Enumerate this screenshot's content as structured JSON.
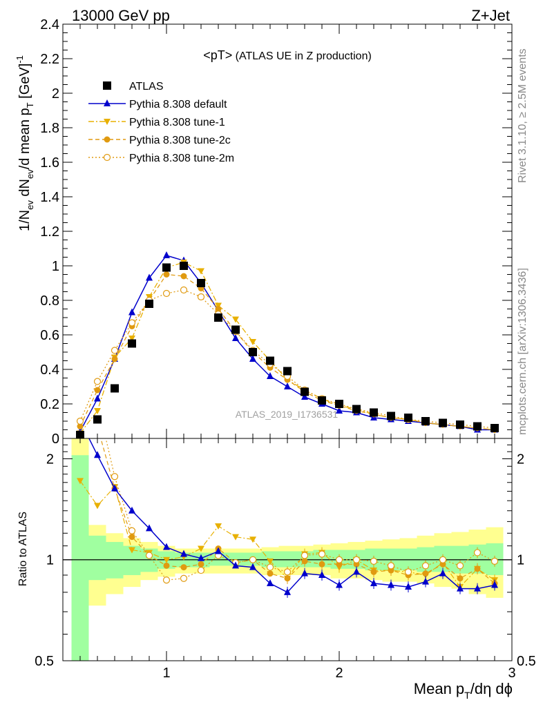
{
  "header": {
    "left": "13000 GeV pp",
    "right": "Z+Jet"
  },
  "side": {
    "top": "Rivet 3.1.10, ≥ 2.5M events",
    "bottom": "mcplots.cern.ch [arXiv:1306.3436]"
  },
  "chart_data": {
    "type": "line",
    "title": "<pT> (ATLAS UE in Z production)",
    "watermark": "ATLAS_2019_I1736531",
    "xlabel_main": "Mean p",
    "xlabel_sub": "T",
    "xlabel_rest": "/dη dϕ",
    "ylabel": "1/N_ev dN_ev/d mean p_T [GeV]^-1",
    "ratio_ylabel": "Ratio to ATLAS",
    "xlim": [
      0.4,
      3.0
    ],
    "ylim": [
      0,
      2.4
    ],
    "ratio_ylim": [
      0.5,
      2.3
    ],
    "x_ticks": [
      1,
      2,
      3
    ],
    "y_ticks": [
      0,
      0.2,
      0.4,
      0.6,
      0.8,
      1,
      1.2,
      1.4,
      1.6,
      1.8,
      2,
      2.2,
      2.4
    ],
    "y_tick_labels": [
      "0",
      "0.2",
      "0.4",
      "0.6",
      "0.8",
      "1",
      "1.2",
      "1.4",
      "1.6",
      "1.8",
      "2",
      "2.2",
      "2.4"
    ],
    "ratio_ticks": [
      0.5,
      1,
      2
    ],
    "ratio_tick_labels": [
      "0.5",
      "1",
      "2"
    ],
    "x": [
      0.5,
      0.6,
      0.7,
      0.8,
      0.9,
      1.0,
      1.1,
      1.2,
      1.3,
      1.4,
      1.5,
      1.6,
      1.7,
      1.8,
      1.9,
      2.0,
      2.1,
      2.2,
      2.3,
      2.4,
      2.5,
      2.6,
      2.7,
      2.8,
      2.9
    ],
    "series": [
      {
        "name": "ATLAS",
        "color": "#000000",
        "marker": "square",
        "values": [
          0.02,
          0.11,
          0.29,
          0.55,
          0.78,
          0.99,
          1.0,
          0.9,
          0.7,
          0.63,
          0.5,
          0.45,
          0.39,
          0.27,
          0.22,
          0.2,
          0.17,
          0.15,
          0.13,
          0.12,
          0.1,
          0.09,
          0.08,
          0.07,
          0.06
        ]
      },
      {
        "name": "Pythia 8.308 default",
        "color": "#0000cc",
        "marker": "triangle-up",
        "line": "solid",
        "values": [
          0.04,
          0.23,
          0.46,
          0.73,
          0.93,
          1.06,
          1.03,
          0.9,
          0.74,
          0.58,
          0.46,
          0.36,
          0.3,
          0.24,
          0.2,
          0.16,
          0.15,
          0.12,
          0.11,
          0.1,
          0.09,
          0.08,
          0.07,
          0.05,
          0.05
        ]
      },
      {
        "name": "Pythia 8.308 tune-1",
        "color": "#e8b000",
        "marker": "triangle-down",
        "line": "dashdot",
        "values": [
          0.03,
          0.16,
          0.47,
          0.58,
          0.82,
          0.99,
          1.02,
          0.97,
          0.77,
          0.69,
          0.56,
          0.45,
          0.34,
          0.28,
          0.23,
          0.19,
          0.17,
          0.14,
          0.12,
          0.11,
          0.09,
          0.08,
          0.07,
          0.06,
          0.05
        ]
      },
      {
        "name": "Pythia 8.308 tune-2c",
        "color": "#e09a10",
        "marker": "circle",
        "line": "dashed",
        "values": [
          0.07,
          0.28,
          0.46,
          0.65,
          0.8,
          0.95,
          0.94,
          0.87,
          0.75,
          0.62,
          0.5,
          0.41,
          0.34,
          0.27,
          0.22,
          0.19,
          0.16,
          0.14,
          0.12,
          0.11,
          0.09,
          0.08,
          0.07,
          0.06,
          0.05
        ]
      },
      {
        "name": "Pythia 8.308 tune-2m",
        "color": "#e09a10",
        "marker": "circle-open",
        "line": "dotted",
        "values": [
          0.1,
          0.33,
          0.51,
          0.67,
          0.8,
          0.84,
          0.86,
          0.82,
          0.72,
          0.62,
          0.51,
          0.43,
          0.36,
          0.28,
          0.23,
          0.2,
          0.17,
          0.15,
          0.13,
          0.11,
          0.1,
          0.09,
          0.08,
          0.07,
          0.06
        ]
      }
    ],
    "ratio_series": [
      {
        "name": "Pythia 8.308 default",
        "values": [
          2.6,
          2.05,
          1.63,
          1.4,
          1.24,
          1.09,
          1.04,
          1.01,
          1.06,
          0.96,
          0.95,
          0.85,
          0.8,
          0.91,
          0.9,
          0.84,
          0.92,
          0.85,
          0.84,
          0.83,
          0.86,
          0.91,
          0.82,
          0.82,
          0.84
        ]
      },
      {
        "name": "Pythia 8.308 tune-1",
        "values": [
          1.72,
          1.45,
          1.65,
          1.07,
          1.05,
          1.0,
          1.02,
          1.08,
          1.26,
          1.17,
          1.15,
          0.99,
          0.88,
          1.04,
          1.05,
          0.95,
          1.0,
          0.93,
          0.93,
          0.92,
          0.9,
          0.98,
          0.83,
          0.94,
          0.87
        ]
      },
      {
        "name": "Pythia 8.308 tune-2c",
        "values": [
          3.2,
          2.5,
          1.63,
          1.17,
          1.03,
          0.96,
          0.95,
          0.97,
          1.08,
          0.98,
          1.0,
          0.91,
          0.88,
          0.99,
          0.97,
          0.97,
          0.97,
          0.92,
          0.93,
          0.9,
          0.91,
          0.97,
          0.88,
          0.94,
          0.85
        ]
      },
      {
        "name": "Pythia 8.308 tune-2m",
        "values": [
          4.5,
          2.95,
          1.77,
          1.22,
          1.03,
          0.87,
          0.88,
          0.93,
          1.03,
          0.98,
          1.0,
          0.95,
          0.92,
          1.03,
          1.04,
          1.0,
          1.0,
          0.99,
          0.96,
          0.92,
          0.96,
          1.0,
          0.96,
          1.05,
          0.99
        ]
      }
    ],
    "band_inner": {
      "color": "#a0ffa0",
      "lo": [
        0.3,
        0.87,
        0.88,
        0.9,
        0.92,
        0.94,
        0.95,
        0.95,
        0.96,
        0.96,
        0.96,
        0.95,
        0.95,
        0.95,
        0.95,
        0.94,
        0.94,
        0.93,
        0.93,
        0.93,
        0.92,
        0.92,
        0.91,
        0.91,
        0.9
      ],
      "hi": [
        2.05,
        1.18,
        1.13,
        1.1,
        1.08,
        1.06,
        1.05,
        1.05,
        1.05,
        1.05,
        1.05,
        1.06,
        1.06,
        1.06,
        1.07,
        1.07,
        1.07,
        1.08,
        1.08,
        1.08,
        1.09,
        1.1,
        1.1,
        1.11,
        1.12
      ]
    },
    "band_outer": {
      "color": "#ffff90",
      "lo": [
        0.3,
        0.73,
        0.79,
        0.83,
        0.87,
        0.89,
        0.91,
        0.91,
        0.91,
        0.91,
        0.91,
        0.9,
        0.9,
        0.9,
        0.9,
        0.88,
        0.88,
        0.87,
        0.86,
        0.86,
        0.85,
        0.83,
        0.82,
        0.79,
        0.77
      ],
      "hi": [
        2.3,
        1.27,
        1.2,
        1.16,
        1.13,
        1.1,
        1.08,
        1.08,
        1.08,
        1.08,
        1.08,
        1.09,
        1.1,
        1.1,
        1.11,
        1.12,
        1.13,
        1.14,
        1.15,
        1.16,
        1.18,
        1.2,
        1.21,
        1.23,
        1.25
      ]
    }
  }
}
